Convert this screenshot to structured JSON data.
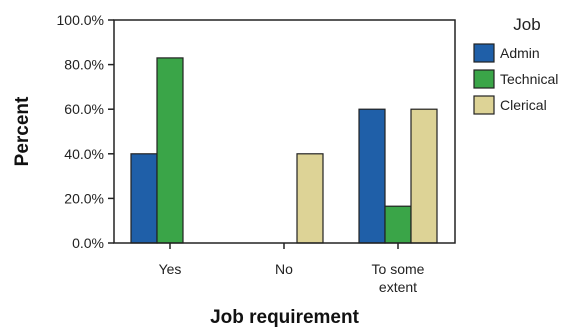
{
  "chart_data": {
    "type": "bar",
    "title": "",
    "xlabel": "Job requirement",
    "ylabel": "Percent",
    "categories": [
      [
        "Yes"
      ],
      [
        "No"
      ],
      [
        "To some",
        "extent"
      ]
    ],
    "y_ticks": [
      "0.0%",
      "20.0%",
      "40.0%",
      "60.0%",
      "80.0%",
      "100.0%"
    ],
    "ylim": [
      0,
      100
    ],
    "legend": {
      "title": "Job",
      "position": "right"
    },
    "grid": false,
    "series": [
      {
        "name": "Admin",
        "color": "#1f5fa8",
        "values": [
          40,
          0,
          60
        ]
      },
      {
        "name": "Technical",
        "color": "#3aa548",
        "values": [
          83,
          0,
          16.5
        ]
      },
      {
        "name": "Clerical",
        "color": "#ddd396",
        "values": [
          0,
          40,
          60
        ]
      }
    ]
  }
}
